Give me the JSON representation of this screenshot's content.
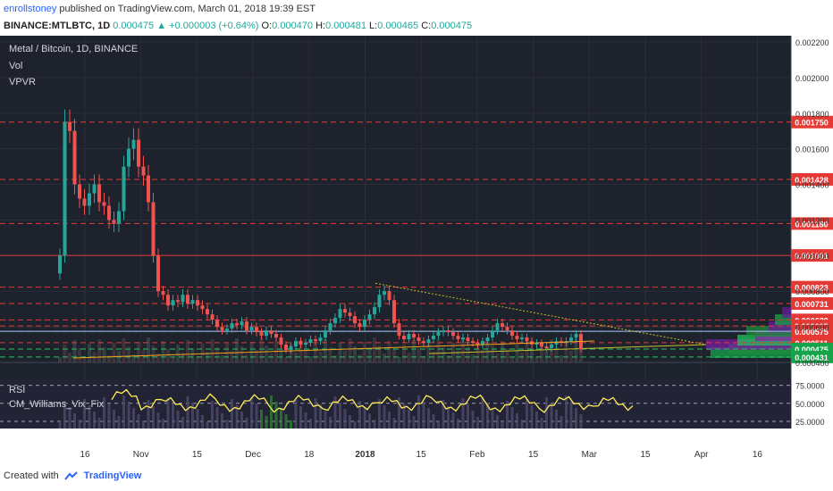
{
  "header": {
    "author": "enrollstoney",
    "published_text": "published on TradingView.com, March 01, 2018 19:39 EST",
    "symbol_line": "BINANCE:MTLBTC, 1D",
    "last": "0.000475",
    "change": "+0.000003 (+0.64%)",
    "open_label": "O:",
    "open": "0.000470",
    "high_label": "H:",
    "high": "0.000481",
    "low_label": "L:",
    "low": "0.000465",
    "close_label": "C:",
    "close": "0.000475"
  },
  "legend": {
    "title": "Metal / Bitcoin, 1D, BINANCE",
    "vol": "Vol",
    "vpvr": "VPVR",
    "rsi": "RSI",
    "vix": "CM_Williams_Vix_Fix"
  },
  "footer": {
    "created": "Created with",
    "brand": "TradingView"
  },
  "colors": {
    "bg": "#1e222d",
    "up": "#26a69a",
    "down": "#ef5350",
    "hline": "#e53935",
    "ma": "#f7a21b",
    "rsi": "#ffee58",
    "trend": "#c6c02a"
  },
  "chart_data": {
    "type": "candlestick",
    "price_axis": {
      "ylim": [
        0.0004,
        0.00222
      ],
      "ticks": [
        "0.002200",
        "0.002000",
        "0.001800",
        "0.001600",
        "0.001400",
        "0.001200",
        "0.001000",
        "0.000800",
        "0.000600",
        "0.000400"
      ],
      "levels": [
        {
          "label": "0.001750",
          "value": 0.00175
        },
        {
          "label": "0.001428",
          "value": 0.001428
        },
        {
          "label": "0.001180",
          "value": 0.00118
        },
        {
          "label": "0.001001",
          "value": 0.001001
        },
        {
          "label": "0.000823",
          "value": 0.000823
        },
        {
          "label": "0.000731",
          "value": 0.000731
        },
        {
          "label": "0.000639",
          "value": 0.000639
        },
        {
          "label": "0.000605",
          "value": 0.000605
        },
        {
          "label": "0.000575",
          "value": 0.000575
        },
        {
          "label": "0.000511",
          "value": 0.000511
        },
        {
          "label": "0.000475",
          "value": 0.000475
        },
        {
          "label": "0.000431",
          "value": 0.000431
        }
      ]
    },
    "x_axis": {
      "ticks": [
        "16",
        "Nov",
        "15",
        "Dec",
        "18",
        "2018",
        "15",
        "Feb",
        "15",
        "Mar",
        "15",
        "Apr",
        "16"
      ]
    },
    "ohlc_close": [
      0.001,
      0.00175,
      0.0017,
      0.0014,
      0.00132,
      0.00128,
      0.00135,
      0.0014,
      0.0013,
      0.00128,
      0.0012,
      0.00118,
      0.00125,
      0.0015,
      0.0016,
      0.00165,
      0.0015,
      0.00145,
      0.0013,
      0.001,
      0.0008,
      0.00078,
      0.00072,
      0.00075,
      0.00074,
      0.00078,
      0.00073,
      0.00075,
      0.00072,
      0.0007,
      0.00067,
      0.00064,
      0.0006,
      0.00058,
      0.00059,
      0.00062,
      0.00061,
      0.00063,
      0.00058,
      0.0006,
      0.00057,
      0.00055,
      0.00058,
      0.00056,
      0.00054,
      0.0005,
      0.00047,
      0.00049,
      0.00052,
      0.0005,
      0.00051,
      0.00053,
      0.00052,
      0.00054,
      0.00058,
      0.00062,
      0.00065,
      0.0007,
      0.00068,
      0.00066,
      0.00062,
      0.0006,
      0.00064,
      0.00067,
      0.00071,
      0.00078,
      0.0008,
      0.00075,
      0.00062,
      0.00055,
      0.00053,
      0.00056,
      0.00054,
      0.00052,
      0.00051,
      0.00053,
      0.00055,
      0.00057,
      0.00058,
      0.00057,
      0.00055,
      0.00053,
      0.00054,
      0.00052,
      0.00051,
      0.0005,
      0.00052,
      0.00054,
      0.00058,
      0.00062,
      0.0006,
      0.00058,
      0.00055,
      0.00053,
      0.00054,
      0.00052,
      0.0005,
      0.00051,
      0.00049,
      0.00048,
      0.0005,
      0.00052,
      0.00051,
      0.00052,
      0.00054,
      0.00056,
      0.000475
    ],
    "rsi": {
      "ylim": [
        15,
        82
      ],
      "ticks": [
        "75.0000",
        "50.0000",
        "25.0000"
      ]
    }
  }
}
